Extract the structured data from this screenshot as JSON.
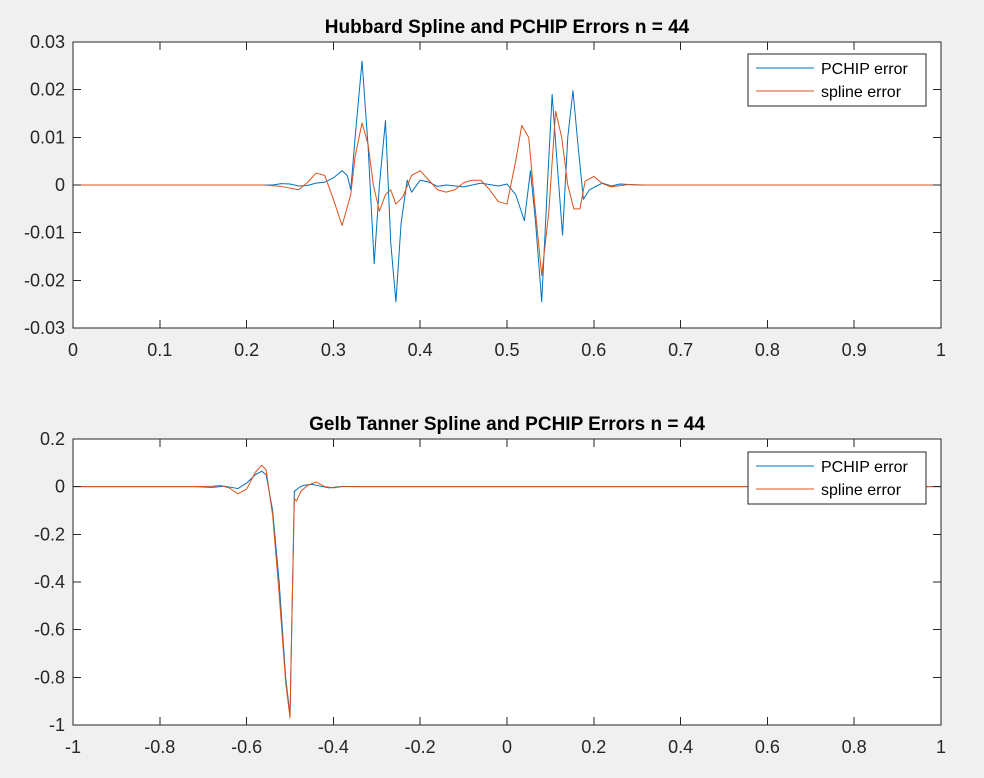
{
  "colors": {
    "figure_background": "#f0f0f0",
    "axes_background": "#ffffff",
    "axis_color": "#262626",
    "pchip": "#0072bd",
    "spline": "#d95319"
  },
  "chart_data": [
    {
      "type": "line",
      "title": "Hubbard Spline and PCHIP Errors n = 44",
      "xlabel": "",
      "ylabel": "",
      "xlim": [
        0,
        1
      ],
      "ylim": [
        -0.03,
        0.03
      ],
      "grid": false,
      "legend_position": "top-right",
      "x_ticks": [
        0,
        0.1,
        0.2,
        0.3,
        0.4,
        0.5,
        0.6,
        0.7,
        0.8,
        0.9,
        1
      ],
      "x_tick_labels": [
        "0",
        "0.1",
        "0.2",
        "0.3",
        "0.4",
        "0.5",
        "0.6",
        "0.7",
        "0.8",
        "0.9",
        "1"
      ],
      "y_ticks": [
        -0.03,
        -0.02,
        -0.01,
        0,
        0.01,
        0.02,
        0.03
      ],
      "y_tick_labels": [
        "-0.03",
        "-0.02",
        "-0.01",
        "0",
        "0.01",
        "0.02",
        "0.03"
      ],
      "series": [
        {
          "name": "PCHIP error",
          "color": "#0072bd",
          "x": [
            0,
            0.23,
            0.24,
            0.25,
            0.26,
            0.27,
            0.28,
            0.29,
            0.3,
            0.31,
            0.316,
            0.32,
            0.326,
            0.333,
            0.34,
            0.347,
            0.353,
            0.36,
            0.366,
            0.372,
            0.378,
            0.385,
            0.39,
            0.4,
            0.41,
            0.42,
            0.43,
            0.45,
            0.47,
            0.49,
            0.5,
            0.51,
            0.52,
            0.527,
            0.533,
            0.54,
            0.546,
            0.552,
            0.558,
            0.564,
            0.57,
            0.576,
            0.582,
            0.588,
            0.595,
            0.6,
            0.61,
            0.62,
            0.63,
            0.65,
            0.66,
            1
          ],
          "y": [
            0,
            0,
            0.0003,
            0.0002,
            -0.0002,
            -0.0001,
            0.0004,
            0.0006,
            0.0015,
            0.003,
            0.002,
            -0.001,
            0.012,
            0.026,
            0.008,
            -0.0165,
            0.0,
            0.0135,
            -0.012,
            -0.0245,
            -0.008,
            0.001,
            -0.0015,
            0.001,
            0.0006,
            -0.0003,
            0,
            -0.0004,
            0.0004,
            -0.0002,
            0.0002,
            -0.002,
            -0.0075,
            0.003,
            -0.008,
            -0.0245,
            -0.002,
            0.019,
            0.004,
            -0.0105,
            0.01,
            0.0198,
            0.008,
            -0.003,
            -0.001,
            -0.0005,
            0.0004,
            -0.0002,
            0.0002,
            0,
            0,
            0
          ]
        },
        {
          "name": "spline error",
          "color": "#d95319",
          "x": [
            0,
            0.22,
            0.24,
            0.26,
            0.27,
            0.28,
            0.29,
            0.3,
            0.31,
            0.32,
            0.325,
            0.333,
            0.34,
            0.346,
            0.353,
            0.36,
            0.366,
            0.372,
            0.38,
            0.39,
            0.4,
            0.41,
            0.42,
            0.43,
            0.44,
            0.45,
            0.46,
            0.47,
            0.48,
            0.49,
            0.5,
            0.51,
            0.517,
            0.525,
            0.532,
            0.54,
            0.548,
            0.556,
            0.563,
            0.57,
            0.577,
            0.584,
            0.59,
            0.6,
            0.61,
            0.62,
            0.64,
            0.66,
            1
          ],
          "y": [
            0,
            0,
            -0.0003,
            -0.001,
            0.0005,
            0.0025,
            0.002,
            -0.003,
            -0.0085,
            -0.002,
            0.006,
            0.013,
            0.0085,
            0.0,
            -0.0055,
            -0.002,
            -0.001,
            -0.004,
            -0.0025,
            0.002,
            0.003,
            0.001,
            -0.001,
            -0.0015,
            -0.001,
            0.0005,
            0.001,
            0.001,
            -0.001,
            -0.0035,
            -0.004,
            0.005,
            0.0125,
            0.01,
            -0.004,
            -0.019,
            -0.006,
            0.0155,
            0.01,
            0.0,
            -0.005,
            -0.005,
            0.0008,
            0.0018,
            0.0003,
            -0.0004,
            0.0001,
            0,
            0
          ]
        }
      ]
    },
    {
      "type": "line",
      "title": "Gelb Tanner Spline and PCHIP Errors n = 44",
      "xlabel": "",
      "ylabel": "",
      "xlim": [
        -1,
        1
      ],
      "ylim": [
        -1,
        0.2
      ],
      "grid": false,
      "legend_position": "top-right",
      "x_ticks": [
        -1,
        -0.8,
        -0.6,
        -0.4,
        -0.2,
        0,
        0.2,
        0.4,
        0.6,
        0.8,
        1
      ],
      "x_tick_labels": [
        "-1",
        "-0.8",
        "-0.6",
        "-0.4",
        "-0.2",
        "0",
        "0.2",
        "0.4",
        "0.6",
        "0.8",
        "1"
      ],
      "y_ticks": [
        -1,
        -0.8,
        -0.6,
        -0.4,
        -0.2,
        0,
        0.2
      ],
      "y_tick_labels": [
        "-1",
        "-0.8",
        "-0.6",
        "-0.4",
        "-0.2",
        "0",
        "0.2"
      ],
      "series": [
        {
          "name": "PCHIP error",
          "color": "#0072bd",
          "x": [
            -1,
            -0.72,
            -0.68,
            -0.65,
            -0.62,
            -0.6,
            -0.58,
            -0.565,
            -0.555,
            -0.54,
            -0.525,
            -0.51,
            -0.5,
            -0.495,
            -0.49,
            -0.48,
            -0.47,
            -0.45,
            -0.43,
            -0.41,
            -0.38,
            -0.35,
            1
          ],
          "y": [
            0,
            0,
            -0.003,
            0.002,
            -0.008,
            0.015,
            0.05,
            0.065,
            0.05,
            -0.1,
            -0.4,
            -0.8,
            -0.96,
            -0.5,
            -0.02,
            -0.005,
            0.005,
            0.01,
            0.002,
            -0.005,
            0.001,
            0,
            0
          ]
        },
        {
          "name": "spline error",
          "color": "#d95319",
          "x": [
            -1,
            -0.72,
            -0.68,
            -0.66,
            -0.64,
            -0.62,
            -0.6,
            -0.58,
            -0.565,
            -0.555,
            -0.54,
            -0.525,
            -0.51,
            -0.5,
            -0.495,
            -0.49,
            -0.485,
            -0.475,
            -0.46,
            -0.44,
            -0.42,
            -0.4,
            -0.38,
            1
          ],
          "y": [
            0,
            0,
            0.002,
            0.005,
            -0.005,
            -0.03,
            -0.01,
            0.06,
            0.09,
            0.07,
            -0.12,
            -0.45,
            -0.82,
            -0.97,
            -0.5,
            -0.05,
            -0.06,
            -0.02,
            0.005,
            0.02,
            0.0,
            -0.005,
            0,
            0
          ]
        }
      ]
    }
  ]
}
